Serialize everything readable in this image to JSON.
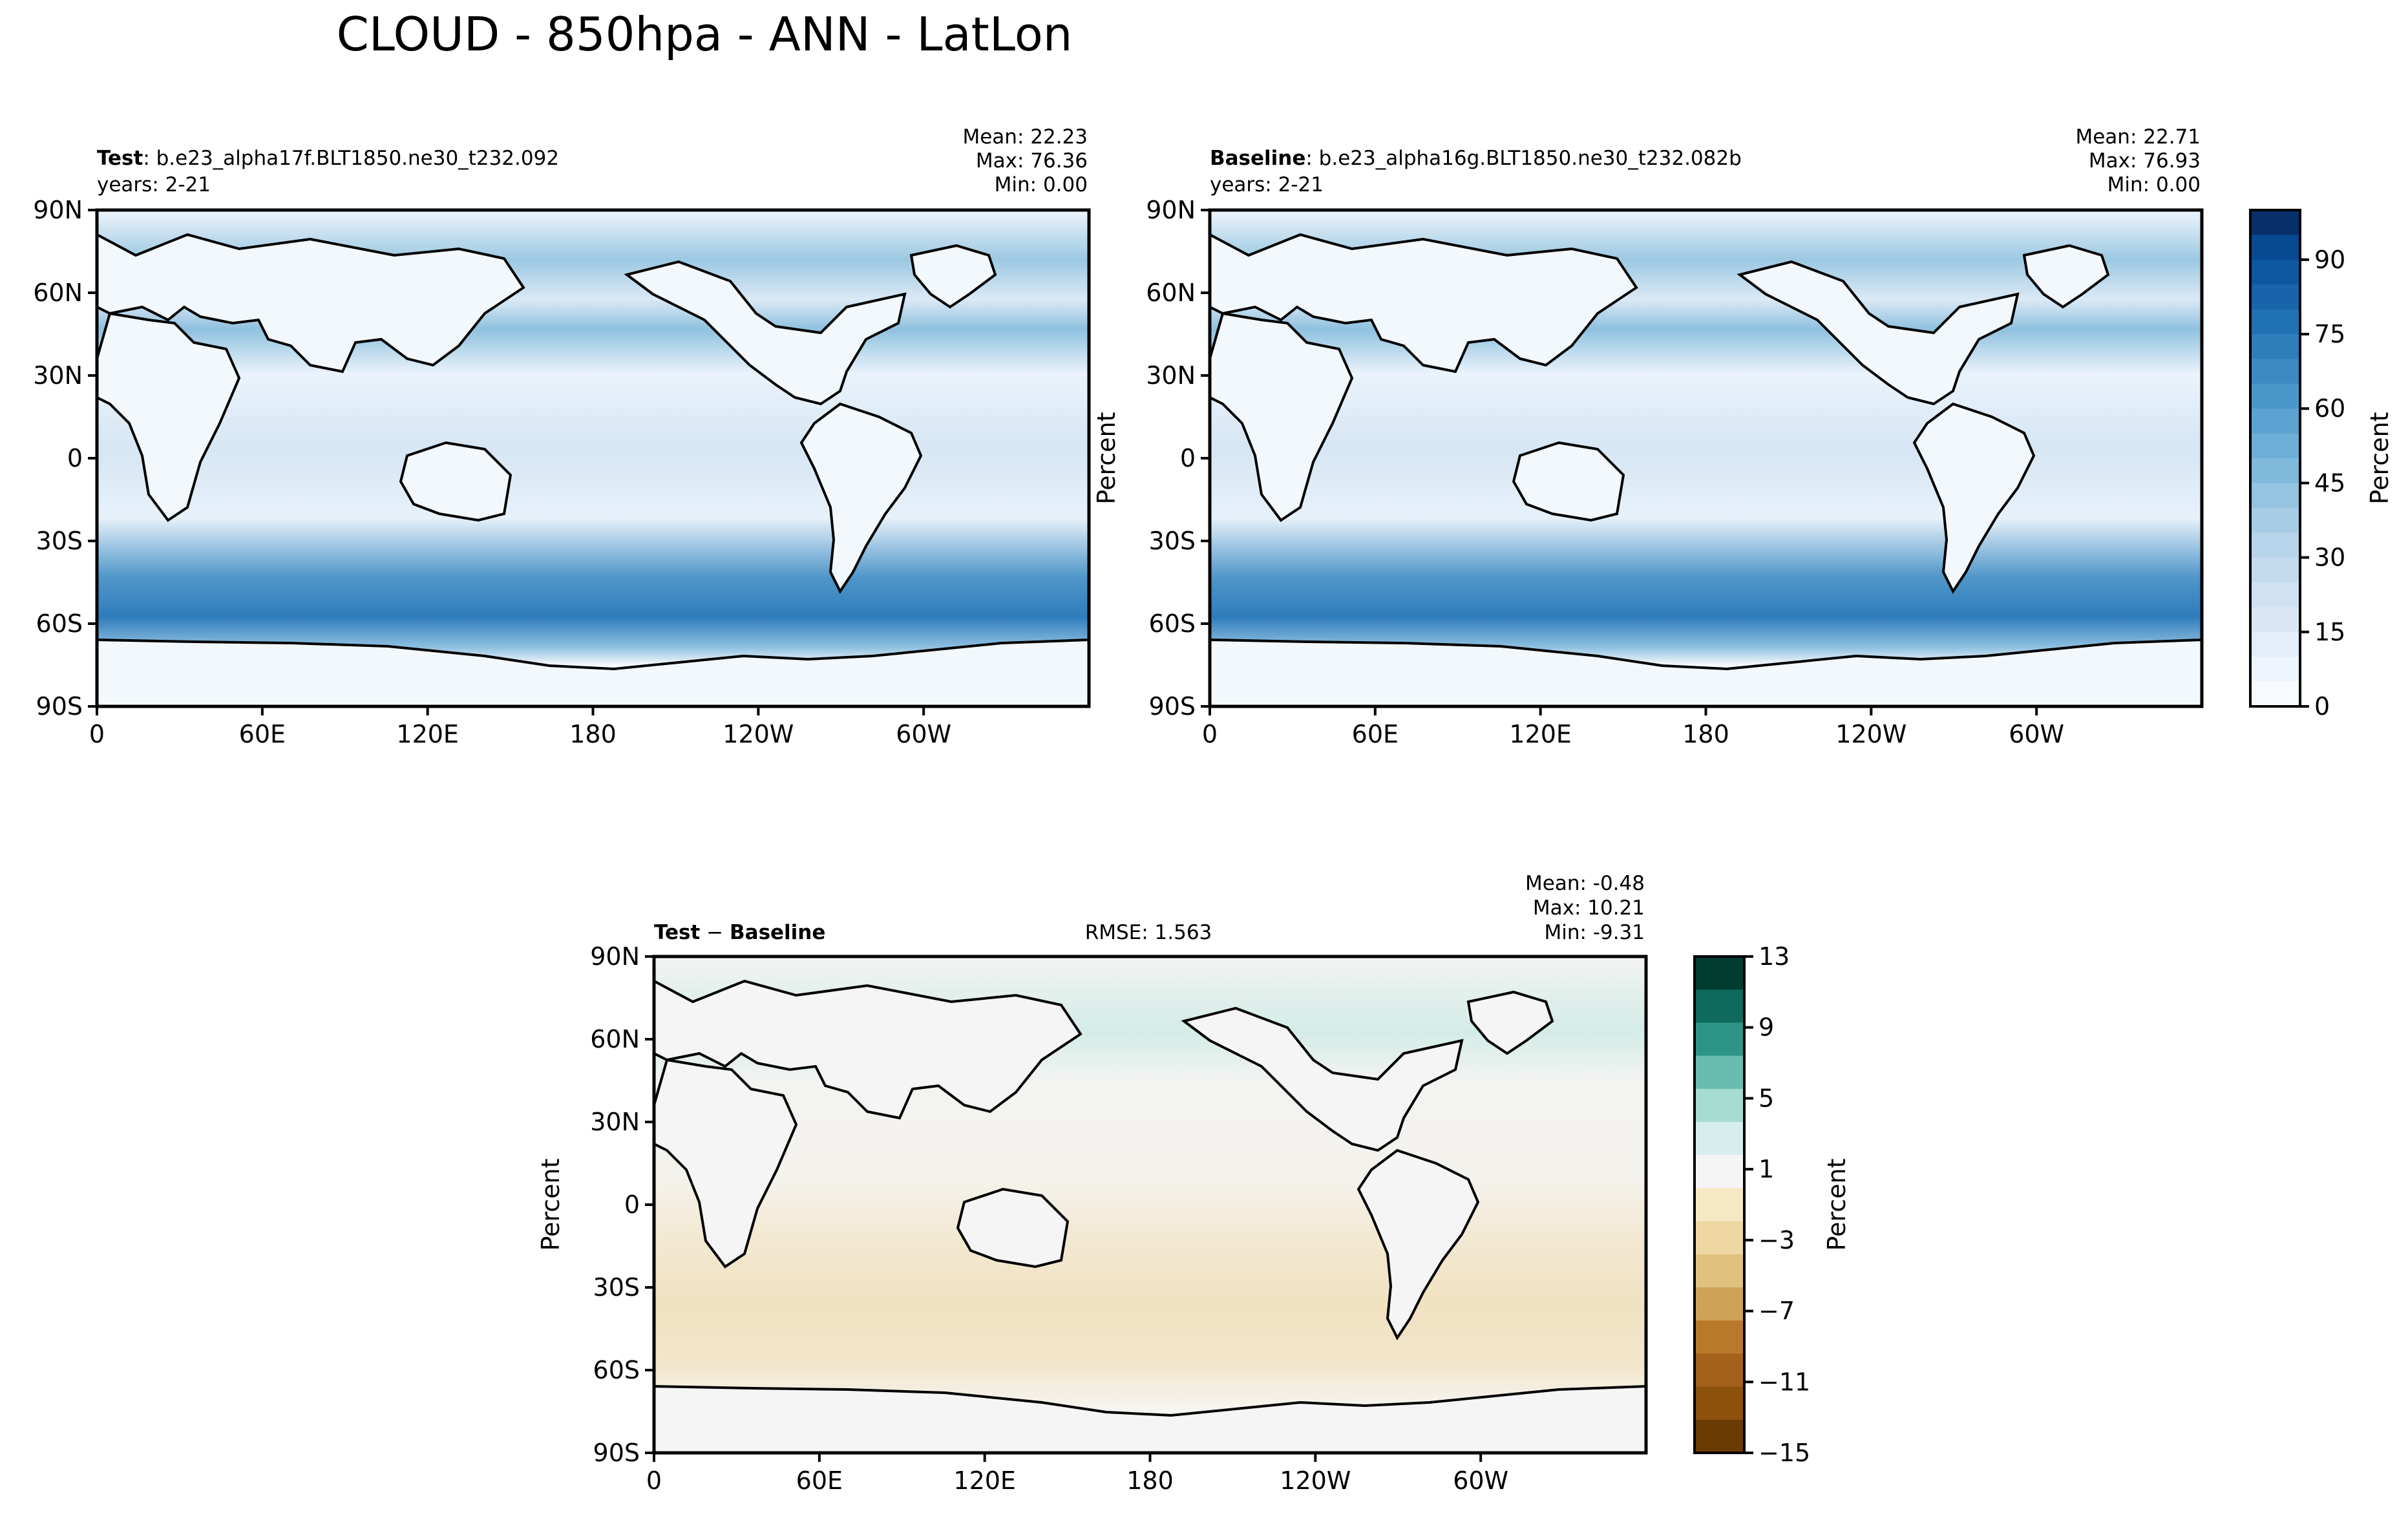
{
  "title": "CLOUD - 850hpa - ANN - LatLon",
  "panels": [
    {
      "id": "test",
      "label_bold": "Test",
      "label_text": ": b.e23_alpha17f.BLT1850.ne30_t232.092",
      "years": "years: 2-21",
      "stats": [
        "Mean: 22.23",
        "Max: 76.36",
        "Min:  0.00"
      ],
      "ylabel": ""
    },
    {
      "id": "baseline",
      "label_bold": "Baseline",
      "label_text": ": b.e23_alpha16g.BLT1850.ne30_t232.082b",
      "years": "years: 2-21",
      "stats": [
        "Mean: 22.71",
        "Max: 76.93",
        "Min:  0.00"
      ],
      "ylabel": "Percent"
    },
    {
      "id": "diff",
      "label_bold": "Test",
      "label_mid": " − ",
      "label_bold2": "Baseline",
      "rmse": "RMSE: 1.563",
      "stats": [
        "Mean: -0.48",
        "Max: 10.21",
        "Min: -9.31"
      ],
      "ylabel": "Percent"
    }
  ],
  "colorbars": [
    {
      "id": "cloud",
      "label": "Percent",
      "ticks": [
        "0",
        "15",
        "30",
        "45",
        "60",
        "75",
        "90"
      ],
      "colors": [
        "#f7fbff",
        "#eef5fc",
        "#e3eef9",
        "#d9e7f5",
        "#cfe1f2",
        "#c4daee",
        "#b7d4ea",
        "#a6cde5",
        "#94c4df",
        "#80b9da",
        "#6caed6",
        "#5ba3d0",
        "#4a98c9",
        "#3b8bc2",
        "#2e7ebc",
        "#2171b5",
        "#1764ab",
        "#0d57a1",
        "#084a91",
        "#08306b"
      ]
    },
    {
      "id": "diff",
      "label": "Percent",
      "ticks": [
        "13",
        "9",
        "5",
        "1",
        "−3",
        "−7",
        "−11",
        "−15"
      ],
      "colors": [
        "#003c30",
        "#0f6a5e",
        "#2f9488",
        "#68bdb0",
        "#a6dcd2",
        "#d7efec",
        "#f5f5f5",
        "#f6e8c3",
        "#eed7a2",
        "#dfc27d",
        "#cfa357",
        "#b8792a",
        "#a3611b",
        "#8c510a",
        "#6b3b06"
      ]
    }
  ],
  "xticks": [
    "0",
    "60E",
    "120E",
    "180",
    "120W",
    "60W"
  ],
  "yticks": [
    "90N",
    "60N",
    "30N",
    "0",
    "30S",
    "60S",
    "90S"
  ],
  "chart_data": {
    "type": "heatmap",
    "title": "CLOUD - 850hpa - ANN - LatLon",
    "variable": "CLOUD",
    "level": "850hpa",
    "season": "ANN",
    "units": "Percent",
    "x_range": [
      0,
      360
    ],
    "y_range": [
      -90,
      90
    ],
    "panels": [
      {
        "name": "Test",
        "case": "b.e23_alpha17f.BLT1850.ne30_t232.092",
        "years": "2-21",
        "mean": 22.23,
        "max": 76.36,
        "min": 0.0,
        "colorbar_range": [
          0,
          100
        ]
      },
      {
        "name": "Baseline",
        "case": "b.e23_alpha16g.BLT1850.ne30_t232.082b",
        "years": "2-21",
        "mean": 22.71,
        "max": 76.93,
        "min": 0.0,
        "colorbar_range": [
          0,
          100
        ]
      },
      {
        "name": "Test - Baseline",
        "rmse": 1.563,
        "mean": -0.48,
        "max": 10.21,
        "min": -9.31,
        "colorbar_range": [
          -15,
          13
        ]
      }
    ]
  }
}
